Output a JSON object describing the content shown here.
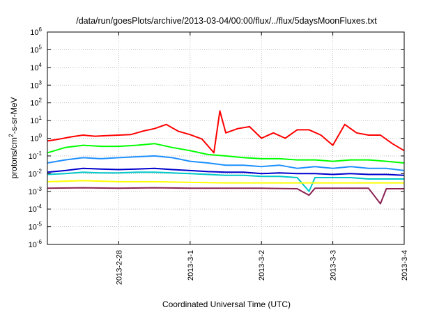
{
  "chart_data": {
    "type": "line",
    "title": "/data/run/goesPlots/archive/2013-03-04/00:00/flux/../flux/5daysMoonFluxes.txt",
    "xlabel": "Coordinated Universal Time (UTC)",
    "ylabel": "protons/cm²-s-sr-MeV",
    "ylabel_parts": {
      "pre": "protons/cm",
      "sup": "2",
      "post": "-s-sr-MeV"
    },
    "y_scale": "log",
    "ylim": [
      1e-06,
      1000000.0
    ],
    "y_ticks": [
      {
        "base": "10",
        "exp": "-6",
        "value": 1e-06
      },
      {
        "base": "10",
        "exp": "-5",
        "value": 1e-05
      },
      {
        "base": "10",
        "exp": "-4",
        "value": 0.0001
      },
      {
        "base": "10",
        "exp": "-3",
        "value": 0.001
      },
      {
        "base": "10",
        "exp": "-2",
        "value": 0.01
      },
      {
        "base": "10",
        "exp": "-1",
        "value": 0.1
      },
      {
        "base": "10",
        "exp": "0",
        "value": 1
      },
      {
        "base": "10",
        "exp": "1",
        "value": 10.0
      },
      {
        "base": "10",
        "exp": "2",
        "value": 100.0
      },
      {
        "base": "10",
        "exp": "3",
        "value": 1000.0
      },
      {
        "base": "10",
        "exp": "4",
        "value": 10000.0
      },
      {
        "base": "10",
        "exp": "5",
        "value": 100000.0
      },
      {
        "base": "10",
        "exp": "6",
        "value": 1000000.0
      }
    ],
    "xlim": [
      "2013-02-27T00:00",
      "2013-03-04T00:00"
    ],
    "x_ticks": [
      {
        "label": "2013-2-28",
        "value": "2013-02-28T00:00"
      },
      {
        "label": "2013-3-1",
        "value": "2013-03-01T00:00"
      },
      {
        "label": "2013-3-2",
        "value": "2013-03-02T00:00"
      },
      {
        "label": "2013-3-3",
        "value": "2013-03-03T00:00"
      },
      {
        "label": "2013-3-4",
        "value": "2013-03-04T00:00"
      }
    ],
    "grid": true,
    "series": [
      {
        "color": "#ff0000",
        "points": [
          [
            "2013-02-27T00:00",
            0.7
          ],
          [
            "2013-02-27T04:00",
            0.9
          ],
          [
            "2013-02-27T08:00",
            1.2
          ],
          [
            "2013-02-27T12:00",
            1.5
          ],
          [
            "2013-02-27T16:00",
            1.3
          ],
          [
            "2013-02-27T20:00",
            1.4
          ],
          [
            "2013-02-28T00:00",
            1.5
          ],
          [
            "2013-02-28T04:00",
            1.6
          ],
          [
            "2013-02-28T08:00",
            2.5
          ],
          [
            "2013-02-28T12:00",
            3.5
          ],
          [
            "2013-02-28T16:00",
            6.0
          ],
          [
            "2013-02-28T20:00",
            2.5
          ],
          [
            "2013-03-01T00:00",
            1.6
          ],
          [
            "2013-03-01T04:00",
            0.9
          ],
          [
            "2013-03-01T08:00",
            0.15
          ],
          [
            "2013-03-01T10:00",
            35
          ],
          [
            "2013-03-01T12:00",
            2.0
          ],
          [
            "2013-03-01T16:00",
            3.5
          ],
          [
            "2013-03-01T20:00",
            4.5
          ],
          [
            "2013-03-02T00:00",
            1.0
          ],
          [
            "2013-03-02T04:00",
            2.0
          ],
          [
            "2013-03-02T08:00",
            1.0
          ],
          [
            "2013-03-02T12:00",
            3.0
          ],
          [
            "2013-03-02T16:00",
            3.0
          ],
          [
            "2013-03-02T20:00",
            1.5
          ],
          [
            "2013-03-03T00:00",
            0.4
          ],
          [
            "2013-03-03T04:00",
            6.0
          ],
          [
            "2013-03-03T08:00",
            2.0
          ],
          [
            "2013-03-03T12:00",
            1.5
          ],
          [
            "2013-03-03T16:00",
            1.5
          ],
          [
            "2013-03-03T20:00",
            0.5
          ],
          [
            "2013-03-04T00:00",
            0.2
          ]
        ]
      },
      {
        "color": "#00ff00",
        "points": [
          [
            "2013-02-27T00:00",
            0.15
          ],
          [
            "2013-02-27T06:00",
            0.3
          ],
          [
            "2013-02-27T12:00",
            0.4
          ],
          [
            "2013-02-27T18:00",
            0.35
          ],
          [
            "2013-02-28T00:00",
            0.35
          ],
          [
            "2013-02-28T06:00",
            0.4
          ],
          [
            "2013-02-28T12:00",
            0.5
          ],
          [
            "2013-02-28T18:00",
            0.3
          ],
          [
            "2013-03-01T00:00",
            0.2
          ],
          [
            "2013-03-01T06:00",
            0.12
          ],
          [
            "2013-03-01T12:00",
            0.1
          ],
          [
            "2013-03-01T18:00",
            0.08
          ],
          [
            "2013-03-02T00:00",
            0.07
          ],
          [
            "2013-03-02T06:00",
            0.07
          ],
          [
            "2013-03-02T12:00",
            0.06
          ],
          [
            "2013-03-02T18:00",
            0.06
          ],
          [
            "2013-03-03T00:00",
            0.05
          ],
          [
            "2013-03-03T06:00",
            0.06
          ],
          [
            "2013-03-03T12:00",
            0.06
          ],
          [
            "2013-03-03T18:00",
            0.05
          ],
          [
            "2013-03-04T00:00",
            0.04
          ]
        ]
      },
      {
        "color": "#1e90ff",
        "points": [
          [
            "2013-02-27T00:00",
            0.04
          ],
          [
            "2013-02-27T06:00",
            0.06
          ],
          [
            "2013-02-27T12:00",
            0.08
          ],
          [
            "2013-02-27T18:00",
            0.07
          ],
          [
            "2013-02-28T00:00",
            0.08
          ],
          [
            "2013-02-28T06:00",
            0.09
          ],
          [
            "2013-02-28T12:00",
            0.1
          ],
          [
            "2013-02-28T18:00",
            0.08
          ],
          [
            "2013-03-01T00:00",
            0.05
          ],
          [
            "2013-03-01T06:00",
            0.04
          ],
          [
            "2013-03-01T12:00",
            0.03
          ],
          [
            "2013-03-01T18:00",
            0.03
          ],
          [
            "2013-03-02T00:00",
            0.025
          ],
          [
            "2013-03-02T06:00",
            0.03
          ],
          [
            "2013-03-02T12:00",
            0.02
          ],
          [
            "2013-03-02T18:00",
            0.025
          ],
          [
            "2013-03-03T00:00",
            0.02
          ],
          [
            "2013-03-03T06:00",
            0.025
          ],
          [
            "2013-03-03T12:00",
            0.02
          ],
          [
            "2013-03-03T18:00",
            0.02
          ],
          [
            "2013-03-04T00:00",
            0.015
          ]
        ]
      },
      {
        "color": "#0000cd",
        "points": [
          [
            "2013-02-27T00:00",
            0.012
          ],
          [
            "2013-02-27T06:00",
            0.015
          ],
          [
            "2013-02-27T12:00",
            0.02
          ],
          [
            "2013-02-27T18:00",
            0.018
          ],
          [
            "2013-02-28T00:00",
            0.017
          ],
          [
            "2013-02-28T06:00",
            0.018
          ],
          [
            "2013-02-28T12:00",
            0.02
          ],
          [
            "2013-02-28T18:00",
            0.017
          ],
          [
            "2013-03-01T00:00",
            0.015
          ],
          [
            "2013-03-01T06:00",
            0.013
          ],
          [
            "2013-03-01T12:00",
            0.012
          ],
          [
            "2013-03-01T18:00",
            0.012
          ],
          [
            "2013-03-02T00:00",
            0.01
          ],
          [
            "2013-03-02T06:00",
            0.011
          ],
          [
            "2013-03-02T12:00",
            0.01
          ],
          [
            "2013-03-02T18:00",
            0.01
          ],
          [
            "2013-03-03T00:00",
            0.009
          ],
          [
            "2013-03-03T06:00",
            0.01
          ],
          [
            "2013-03-03T12:00",
            0.009
          ],
          [
            "2013-03-03T18:00",
            0.009
          ],
          [
            "2013-03-04T00:00",
            0.008
          ]
        ]
      },
      {
        "color": "#00c8c8",
        "points": [
          [
            "2013-02-27T00:00",
            0.009
          ],
          [
            "2013-02-27T06:00",
            0.01
          ],
          [
            "2013-02-27T12:00",
            0.012
          ],
          [
            "2013-02-27T18:00",
            0.011
          ],
          [
            "2013-02-28T00:00",
            0.011
          ],
          [
            "2013-02-28T06:00",
            0.012
          ],
          [
            "2013-02-28T12:00",
            0.012
          ],
          [
            "2013-02-28T18:00",
            0.011
          ],
          [
            "2013-03-01T00:00",
            0.01
          ],
          [
            "2013-03-01T06:00",
            0.009
          ],
          [
            "2013-03-01T12:00",
            0.008
          ],
          [
            "2013-03-01T18:00",
            0.008
          ],
          [
            "2013-03-02T00:00",
            0.007
          ],
          [
            "2013-03-02T06:00",
            0.007
          ],
          [
            "2013-03-02T12:00",
            0.006
          ],
          [
            "2013-03-02T16:00",
            0.001
          ],
          [
            "2013-03-02T18:00",
            0.006
          ],
          [
            "2013-03-03T00:00",
            0.006
          ],
          [
            "2013-03-03T06:00",
            0.006
          ],
          [
            "2013-03-03T12:00",
            0.005
          ],
          [
            "2013-03-03T18:00",
            0.005
          ],
          [
            "2013-03-04T00:00",
            0.005
          ]
        ]
      },
      {
        "color": "#ffff00",
        "points": [
          [
            "2013-02-27T00:00",
            0.0035
          ],
          [
            "2013-02-27T12:00",
            0.004
          ],
          [
            "2013-02-28T00:00",
            0.0035
          ],
          [
            "2013-02-28T12:00",
            0.0035
          ],
          [
            "2013-03-01T00:00",
            0.0032
          ],
          [
            "2013-03-01T12:00",
            0.003
          ],
          [
            "2013-03-02T00:00",
            0.003
          ],
          [
            "2013-03-02T12:00",
            0.003
          ],
          [
            "2013-03-03T00:00",
            0.003
          ],
          [
            "2013-03-03T12:00",
            0.003
          ],
          [
            "2013-03-04T00:00",
            0.003
          ]
        ]
      },
      {
        "color": "#8b2252",
        "points": [
          [
            "2013-02-27T00:00",
            0.0015
          ],
          [
            "2013-02-27T12:00",
            0.0016
          ],
          [
            "2013-02-28T00:00",
            0.0015
          ],
          [
            "2013-02-28T12:00",
            0.0016
          ],
          [
            "2013-03-01T00:00",
            0.0015
          ],
          [
            "2013-03-01T12:00",
            0.0015
          ],
          [
            "2013-03-02T00:00",
            0.0015
          ],
          [
            "2013-03-02T12:00",
            0.0014
          ],
          [
            "2013-03-02T16:00",
            0.0006
          ],
          [
            "2013-03-02T18:00",
            0.0015
          ],
          [
            "2013-03-03T00:00",
            0.0015
          ],
          [
            "2013-03-03T12:00",
            0.0015
          ],
          [
            "2013-03-03T16:00",
            0.0002
          ],
          [
            "2013-03-03T18:00",
            0.0014
          ],
          [
            "2013-03-04T00:00",
            0.0014
          ]
        ]
      }
    ]
  }
}
